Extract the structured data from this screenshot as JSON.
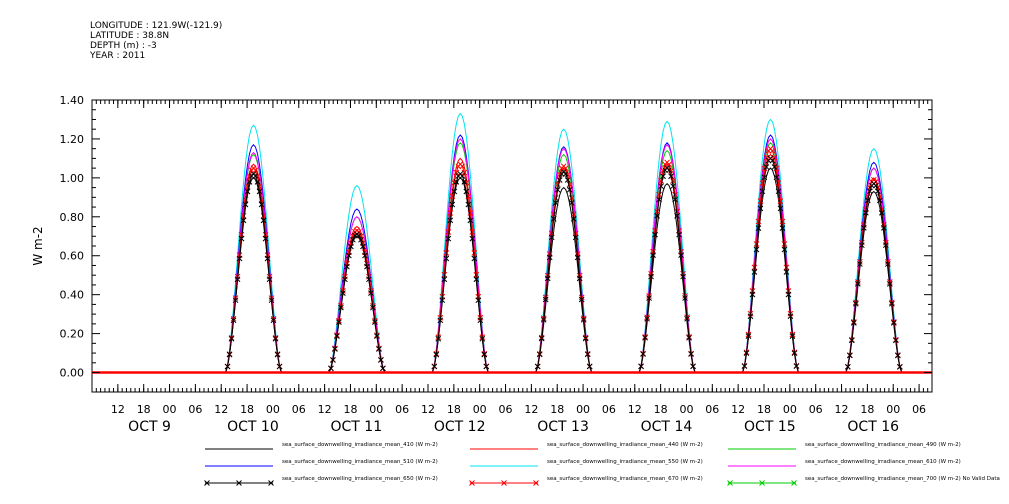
{
  "header": {
    "longitude": "LONGITUDE : 121.9W(-121.9)",
    "latitude": "LATITUDE : 38.8N",
    "depth": "DEPTH (m) : -3",
    "year": "YEAR : 2011"
  },
  "chart_data": {
    "type": "line",
    "title": "",
    "xlabel": "",
    "ylabel": "W m-2",
    "ylim": [
      -0.1,
      1.4
    ],
    "yticks": [
      "0.00",
      "0.20",
      "0.40",
      "0.60",
      "0.80",
      "1.00",
      "1.20",
      "1.40"
    ],
    "x_time_range": [
      "2011-10-08 06:00",
      "2011-10-16 09:00"
    ],
    "hour_ticks": [
      "12",
      "18",
      "00",
      "06",
      "12",
      "18",
      "00",
      "06",
      "12",
      "18",
      "00",
      "06",
      "12",
      "18",
      "00",
      "06",
      "12",
      "18",
      "00",
      "06",
      "12",
      "18",
      "00",
      "06",
      "12",
      "18",
      "00",
      "06",
      "12",
      "18",
      "00",
      "06",
      "12",
      "18",
      "00",
      "06"
    ],
    "day_labels": [
      "OCT  9",
      "OCT 10",
      "OCT 11",
      "OCT 12",
      "OCT 13",
      "OCT 14",
      "OCT 15",
      "OCT 16"
    ],
    "daily_peaks": [
      {
        "day": "2011-10-09",
        "values": {
          "410": 1.0,
          "440": 1.07,
          "490": 1.12,
          "510": 1.17,
          "550": 1.27,
          "610": 1.13,
          "650": 1.02,
          "670": 1.05
        }
      },
      {
        "day": "2011-10-10",
        "values": {
          "410": 0.7,
          "440": 0.75,
          "490": 0.8,
          "510": 0.84,
          "550": 0.96,
          "610": 0.8,
          "650": 0.71,
          "670": 0.73
        }
      },
      {
        "day": "2011-10-11",
        "values": {
          "410": 1.0,
          "440": 1.1,
          "490": 1.18,
          "510": 1.22,
          "550": 1.33,
          "610": 1.2,
          "650": 1.02,
          "670": 1.07
        }
      },
      {
        "day": "2011-10-12",
        "values": {
          "410": 0.95,
          "440": 1.05,
          "490": 1.12,
          "510": 1.16,
          "550": 1.25,
          "610": 1.15,
          "650": 1.03,
          "670": 1.06
        }
      },
      {
        "day": "2011-10-13",
        "values": {
          "410": 0.97,
          "440": 1.07,
          "490": 1.14,
          "510": 1.18,
          "550": 1.29,
          "610": 1.17,
          "650": 1.05,
          "670": 1.08
        }
      },
      {
        "day": "2011-10-14",
        "values": {
          "410": 1.05,
          "440": 1.12,
          "490": 1.18,
          "510": 1.22,
          "550": 1.3,
          "610": 1.2,
          "650": 1.1,
          "670": 1.15
        }
      },
      {
        "day": "2011-10-15",
        "values": {
          "410": 0.93,
          "440": 1.0,
          "490": 1.05,
          "510": 1.08,
          "550": 1.15,
          "610": 1.05,
          "650": 0.97,
          "670": 0.99
        }
      }
    ],
    "series": [
      {
        "name": "sea_surface_downwelling_irradiance_mean_410 (W m-2)",
        "color": "#000000",
        "marker": "none"
      },
      {
        "name": "sea_surface_downwelling_irradiance_mean_440 (W m-2)",
        "color": "#ff0000",
        "marker": "none"
      },
      {
        "name": "sea_surface_downwelling_irradiance_mean_490 (W m-2)",
        "color": "#00cc00",
        "marker": "none"
      },
      {
        "name": "sea_surface_downwelling_irradiance_mean_510 (W m-2)",
        "color": "#0000ff",
        "marker": "none"
      },
      {
        "name": "sea_surface_downwelling_irradiance_mean_550 (W m-2)",
        "color": "#00e5ee",
        "marker": "none"
      },
      {
        "name": "sea_surface_downwelling_irradiance_mean_610 (W m-2)",
        "color": "#ff00ff",
        "marker": "none"
      },
      {
        "name": "sea_surface_downwelling_irradiance_mean_650 (W m-2)",
        "color": "#000000",
        "marker": "x"
      },
      {
        "name": "sea_surface_downwelling_irradiance_mean_670 (W m-2)",
        "color": "#ff0000",
        "marker": "x"
      },
      {
        "name": "sea_surface_downwelling_irradiance_mean_700 (W m-2) No Valid Data",
        "color": "#00cc00",
        "marker": "x"
      }
    ],
    "legend_position": "bottom",
    "grid": false
  }
}
